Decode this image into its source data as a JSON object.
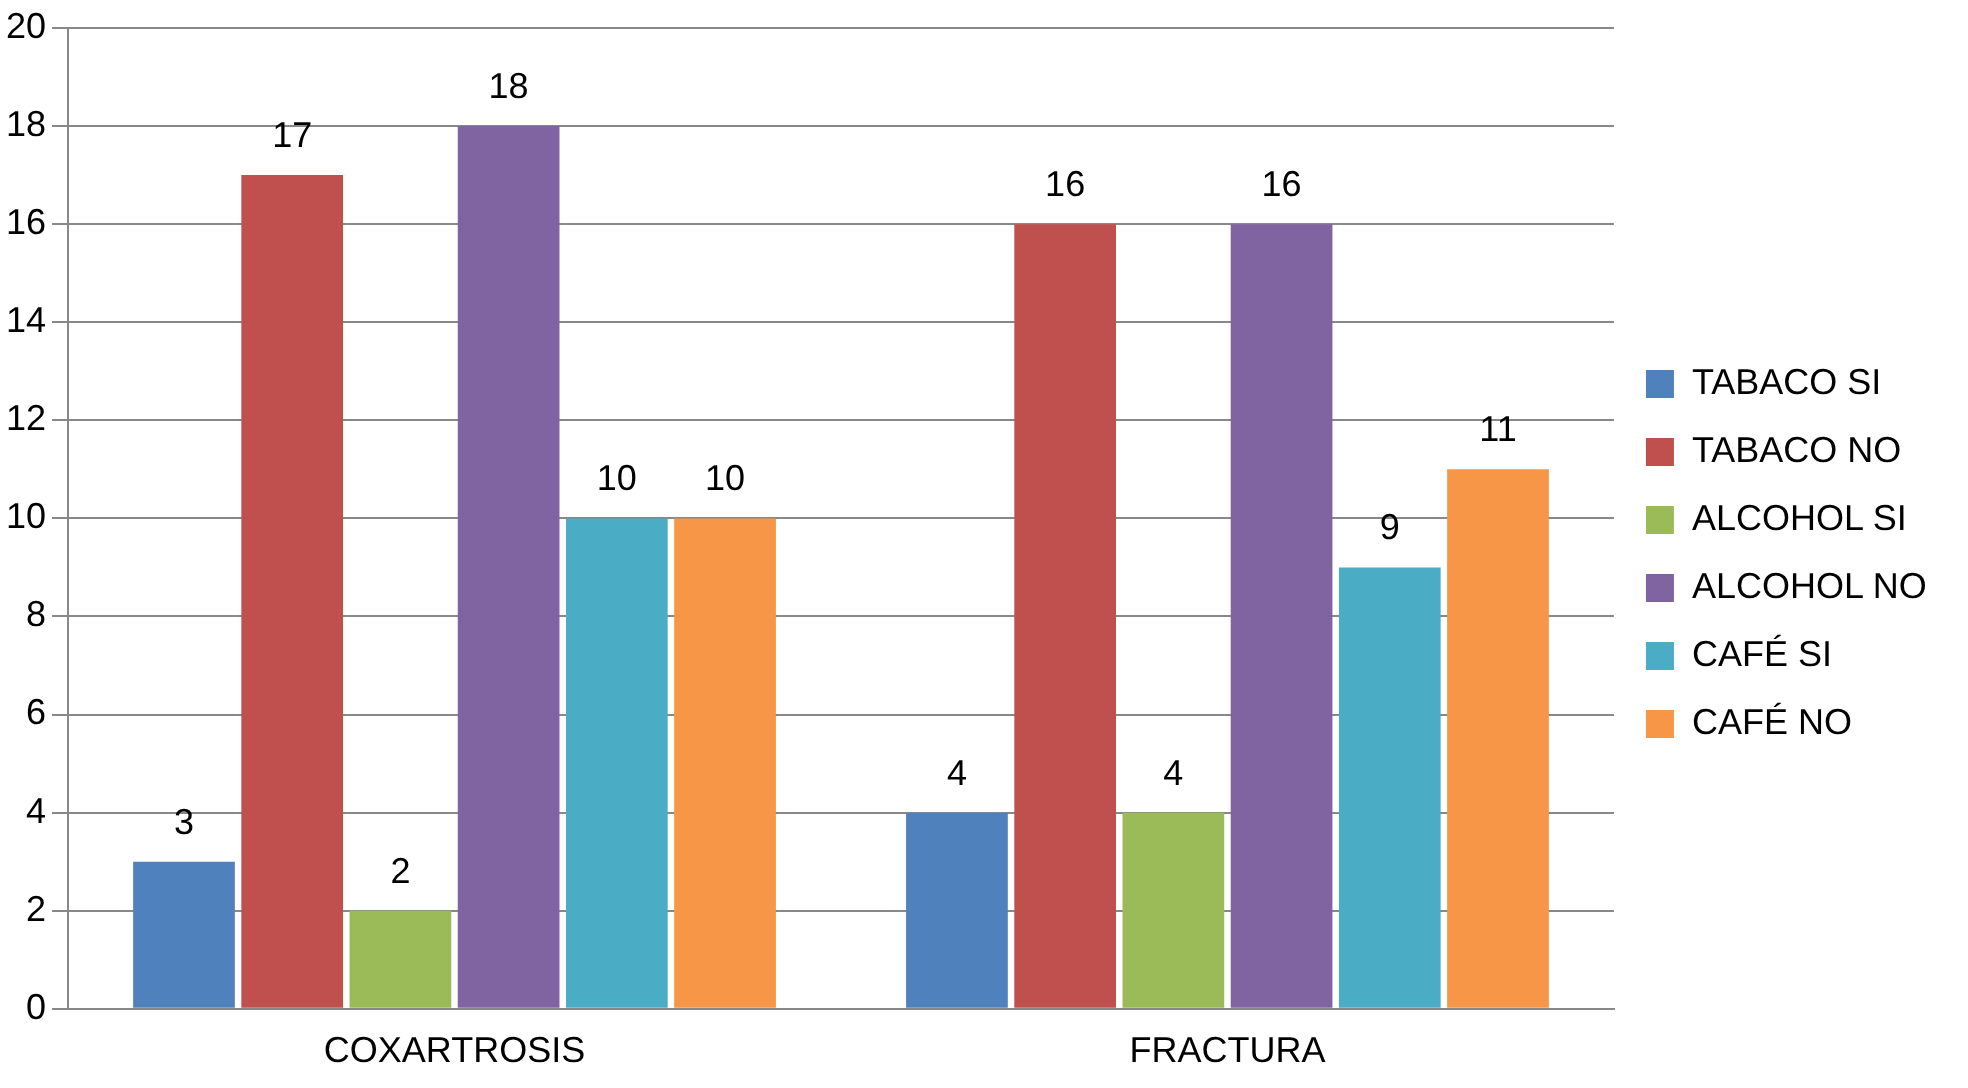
{
  "chart_data": {
    "type": "bar",
    "categories": [
      "COXARTROSIS",
      "FRACTURA"
    ],
    "series": [
      {
        "name": "TABACO SI",
        "color": "#4f81bd",
        "values": [
          3,
          4
        ]
      },
      {
        "name": "TABACO NO",
        "color": "#c0504d",
        "values": [
          17,
          16
        ]
      },
      {
        "name": "ALCOHOL SI",
        "color": "#9bbb59",
        "values": [
          2,
          4
        ]
      },
      {
        "name": "ALCOHOL NO",
        "color": "#8064a2",
        "values": [
          18,
          16
        ]
      },
      {
        "name": "CAFÉ SI",
        "color": "#4bacc6",
        "values": [
          10,
          9
        ]
      },
      {
        "name": "CAFÉ NO",
        "color": "#f79646",
        "values": [
          10,
          11
        ]
      }
    ],
    "ylim": [
      0,
      20
    ],
    "yticks": [
      0,
      2,
      4,
      6,
      8,
      10,
      12,
      14,
      16,
      18,
      20
    ],
    "grid": "y",
    "legend": "right",
    "data_labels": true
  }
}
